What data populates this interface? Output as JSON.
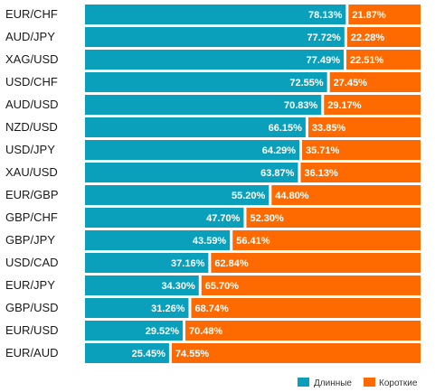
{
  "chart_data": {
    "type": "bar",
    "stacked": true,
    "orientation": "horizontal",
    "categories": [
      "EUR/CHF",
      "AUD/JPY",
      "XAG/USD",
      "USD/CHF",
      "AUD/USD",
      "NZD/USD",
      "USD/JPY",
      "XAU/USD",
      "EUR/GBP",
      "GBP/CHF",
      "GBP/JPY",
      "USD/CAD",
      "EUR/JPY",
      "GBP/USD",
      "EUR/USD",
      "EUR/AUD"
    ],
    "series": [
      {
        "name": "Длинные",
        "color": "#0aa0bc",
        "values": [
          78.13,
          77.72,
          77.49,
          72.55,
          70.83,
          66.15,
          64.29,
          63.87,
          55.2,
          47.7,
          43.59,
          37.16,
          34.3,
          31.26,
          29.52,
          25.45
        ],
        "labels": [
          "78.13%",
          "77.72%",
          "77.49%",
          "72.55%",
          "70.83%",
          "66.15%",
          "64.29%",
          "63.87%",
          "55.20%",
          "47.70%",
          "43.59%",
          "37.16%",
          "34.30%",
          "31.26%",
          "29.52%",
          "25.45%"
        ]
      },
      {
        "name": "Короткие",
        "color": "#ff6a00",
        "values": [
          21.87,
          22.28,
          22.51,
          27.45,
          29.17,
          33.85,
          35.71,
          36.13,
          44.8,
          52.3,
          56.41,
          62.84,
          65.7,
          68.74,
          70.48,
          74.55
        ],
        "labels": [
          "21.87%",
          "22.28%",
          "22.51%",
          "27.45%",
          "29.17%",
          "33.85%",
          "35.71%",
          "36.13%",
          "44.80%",
          "52.30%",
          "56.41%",
          "62.84%",
          "65.70%",
          "68.74%",
          "70.48%",
          "74.55%"
        ]
      }
    ],
    "xlim": [
      0,
      100
    ],
    "legend_position": "bottom-right"
  }
}
